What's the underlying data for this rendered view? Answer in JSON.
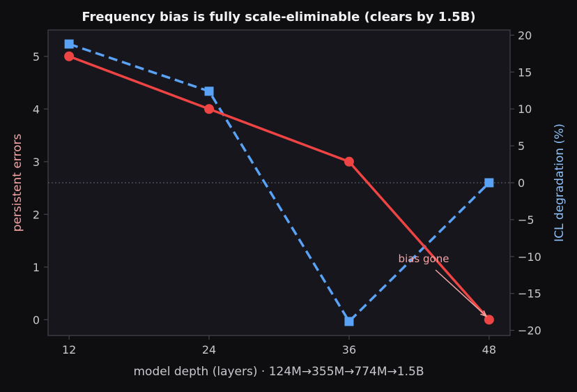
{
  "colors": {
    "background": "#0e0e11",
    "plot_background": "#17161d",
    "axis": "#44444c",
    "text": "#c8c8cc",
    "title": "#f2f2f2",
    "errors": "#ef4444",
    "errors_label": "#f4a3a3",
    "icl": "#5aa2f5",
    "icl_label": "#8ec0f7"
  },
  "chart_data": {
    "type": "line",
    "title": "Frequency bias is fully scale-eliminable (clears by 1.5B)",
    "xlabel": "model depth (layers)  ·  124M→355M→774M→1.5B",
    "x": [
      12,
      24,
      36,
      48
    ],
    "x_ticks": [
      12,
      24,
      36,
      48
    ],
    "xlim": [
      10.2,
      49.8
    ],
    "ylabel_left": "persistent errors",
    "ylabel_right": "ICL degradation (%)",
    "ylim_left": [
      -0.3,
      5.5
    ],
    "yticks_left": [
      0,
      1,
      2,
      3,
      4,
      5
    ],
    "ylim_right": [
      -20.7,
      20.7
    ],
    "yticks_right": [
      -20,
      -15,
      -10,
      -5,
      0,
      5,
      10,
      15,
      20
    ],
    "yticks_right_labels": [
      "−20",
      "−15",
      "−10",
      "−5",
      "0",
      "5",
      "10",
      "15",
      "20"
    ],
    "reference_line_right": 0,
    "series": [
      {
        "axis": "left",
        "marker": "circle",
        "style": "solid",
        "values": [
          5,
          4,
          3,
          0
        ]
      },
      {
        "axis": "right",
        "marker": "square",
        "style": "dashed",
        "values": [
          18.8,
          12.4,
          -18.8,
          0.0
        ]
      }
    ],
    "annotation": {
      "text": "bias gone",
      "x": 48,
      "y": 0,
      "axis": "left"
    }
  }
}
